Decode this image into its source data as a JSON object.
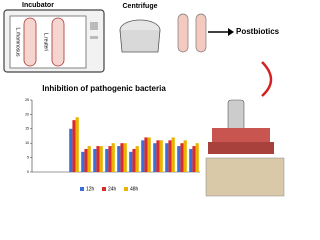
{
  "labels": {
    "incubator": "Incubator",
    "centrifuge": "Centrifuge",
    "postbiotics": "Postbiotics",
    "strain1": "L.rhamnosus",
    "strain2": "L.reuteri"
  },
  "chart_data": {
    "type": "bar",
    "title": "Inhibition of pathogenic bacteria",
    "categories": [
      null,
      null,
      null,
      null,
      null,
      null,
      null,
      null,
      null,
      null,
      null,
      null,
      null,
      null
    ],
    "series": [
      {
        "name": "12h",
        "color": "#3b6fd8",
        "values": [
          0,
          0,
          0,
          15,
          7,
          8,
          8,
          9,
          7,
          11,
          10,
          10,
          9,
          8
        ]
      },
      {
        "name": "24h",
        "color": "#d92b2b",
        "values": [
          0,
          0,
          0,
          18,
          8,
          9,
          9,
          10,
          8,
          12,
          11,
          11,
          10,
          9
        ]
      },
      {
        "name": "48h",
        "color": "#e8b400",
        "values": [
          0,
          0,
          0,
          19,
          9,
          9,
          10,
          10,
          9,
          12,
          11,
          12,
          11,
          10
        ]
      }
    ],
    "ylim": [
      0,
      25
    ],
    "yticks": [
      0,
      5,
      10,
      15,
      20,
      25
    ]
  }
}
